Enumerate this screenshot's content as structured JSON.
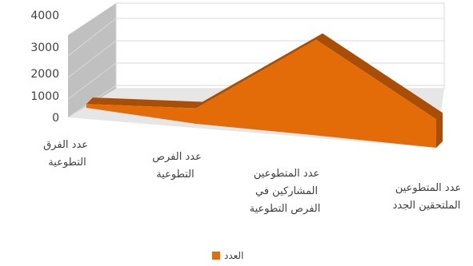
{
  "chart_data": {
    "type": "area",
    "style": "3d",
    "categories": [
      [
        "عدد الفرق",
        "التطوعية"
      ],
      [
        "عدد الفرص",
        "التطوعية"
      ],
      [
        "عدد المتطوعين",
        "المشاركين في",
        "الفرص التطوعية"
      ],
      [
        "عدد المتطوعين",
        "الملتحقين الجدد"
      ]
    ],
    "series": [
      {
        "name": "العدد",
        "values": [
          150,
          600,
          3700,
          1100
        ]
      }
    ],
    "yticks": [
      "4000",
      "3000",
      "2000",
      "1000",
      "0"
    ],
    "ylim": [
      0,
      4000
    ],
    "grid": true,
    "legend": "bottom",
    "colors": {
      "series": "#E36C09",
      "side": "#A84E06",
      "wall": "#bfbfbf",
      "grid": "#d9d9d9"
    }
  }
}
